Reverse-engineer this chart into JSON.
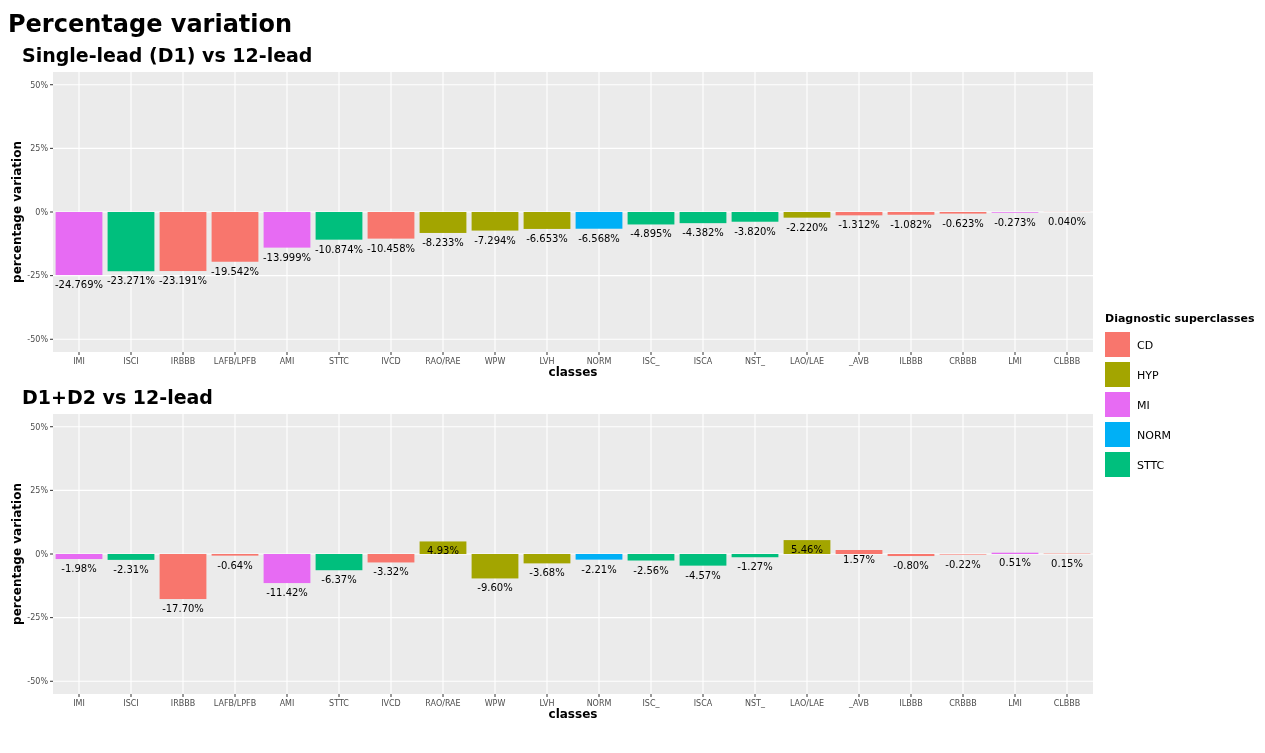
{
  "chart_data": [
    {
      "type": "bar",
      "title": "Percentage variation",
      "subtitle": "Single-lead (D1) vs 12-lead",
      "xlabel": "classes",
      "ylabel": "percentage variation",
      "legend_title": "Diagnostic superclasses",
      "legend": "right",
      "grid": true,
      "stacked": true,
      "categories": [
        "IMI",
        "ISCI",
        "IRBBB",
        "LAFB/LPFB",
        "AMI",
        "STTC",
        "IVCD",
        "RAO/RAE",
        "WPW",
        "LVH",
        "NORM",
        "ISC_",
        "ISCA",
        "NST_",
        "LAO/LAE",
        "_AVB",
        "ILBBB",
        "CRBBB",
        "LMI",
        "CLBBB"
      ],
      "ylim": [
        -55,
        55
      ],
      "yticks": [
        {
          "value": -50,
          "label": "-50%"
        },
        {
          "value": -25,
          "label": "-25%"
        },
        {
          "value": 0,
          "label": "0%"
        },
        {
          "value": 25,
          "label": "25%"
        },
        {
          "value": 50,
          "label": "50%"
        }
      ],
      "series": [
        {
          "name": "CD",
          "color": "#f8766d",
          "values": [
            null,
            null,
            -23.191,
            -19.542,
            null,
            null,
            -10.458,
            null,
            null,
            null,
            null,
            null,
            null,
            null,
            null,
            -1.312,
            -1.082,
            -0.623,
            null,
            0.04
          ],
          "value_labels": [
            null,
            null,
            "-23.191%",
            "-19.542%",
            null,
            null,
            "-10.458%",
            null,
            null,
            null,
            null,
            null,
            null,
            null,
            null,
            "-1.312%",
            "-1.082%",
            "-0.623%",
            null,
            "0.040%"
          ]
        },
        {
          "name": "HYP",
          "color": "#a3a500",
          "values": [
            null,
            null,
            null,
            null,
            null,
            null,
            null,
            -8.233,
            -7.294,
            -6.653,
            null,
            null,
            null,
            null,
            -2.22,
            null,
            null,
            null,
            null,
            null
          ],
          "value_labels": [
            null,
            null,
            null,
            null,
            null,
            null,
            null,
            "-8.233%",
            "-7.294%",
            "-6.653%",
            null,
            null,
            null,
            null,
            "-2.220%",
            null,
            null,
            null,
            null,
            null
          ]
        },
        {
          "name": "MI",
          "color": "#e76bf3",
          "values": [
            -24.769,
            null,
            null,
            null,
            -13.999,
            null,
            null,
            null,
            null,
            null,
            null,
            null,
            null,
            null,
            null,
            null,
            null,
            null,
            -0.273,
            null
          ],
          "value_labels": [
            "-24.769%",
            null,
            null,
            null,
            "-13.999%",
            null,
            null,
            null,
            null,
            null,
            null,
            null,
            null,
            null,
            null,
            null,
            null,
            null,
            "-0.273%",
            null
          ]
        },
        {
          "name": "NORM",
          "color": "#00b0f6",
          "values": [
            null,
            null,
            null,
            null,
            null,
            null,
            null,
            null,
            null,
            null,
            -6.568,
            null,
            null,
            null,
            null,
            null,
            null,
            null,
            null,
            null
          ],
          "value_labels": [
            null,
            null,
            null,
            null,
            null,
            null,
            null,
            null,
            null,
            null,
            "-6.568%",
            null,
            null,
            null,
            null,
            null,
            null,
            null,
            null,
            null
          ]
        },
        {
          "name": "STTC",
          "color": "#00bf7d",
          "values": [
            null,
            -23.271,
            null,
            null,
            null,
            -10.874,
            null,
            null,
            null,
            null,
            null,
            -4.895,
            -4.382,
            -3.82,
            null,
            null,
            null,
            null,
            null,
            null
          ],
          "value_labels": [
            null,
            "-23.271%",
            null,
            null,
            null,
            "-10.874%",
            null,
            null,
            null,
            null,
            null,
            "-4.895%",
            "-4.382%",
            "-3.820%",
            null,
            null,
            null,
            null,
            null,
            null
          ]
        }
      ]
    },
    {
      "type": "bar",
      "title": "D1+D2 vs 12-lead",
      "xlabel": "classes",
      "ylabel": "percentage variation",
      "grid": true,
      "stacked": true,
      "categories": [
        "IMI",
        "ISCI",
        "IRBBB",
        "LAFB/LPFB",
        "AMI",
        "STTC",
        "IVCD",
        "RAO/RAE",
        "WPW",
        "LVH",
        "NORM",
        "ISC_",
        "ISCA",
        "NST_",
        "LAO/LAE",
        "_AVB",
        "ILBBB",
        "CRBBB",
        "LMI",
        "CLBBB"
      ],
      "ylim": [
        -55,
        55
      ],
      "yticks": [
        {
          "value": -50,
          "label": "-50%"
        },
        {
          "value": -25,
          "label": "-25%"
        },
        {
          "value": 0,
          "label": "0%"
        },
        {
          "value": 25,
          "label": "25%"
        },
        {
          "value": 50,
          "label": "50%"
        }
      ],
      "series": [
        {
          "color": "#f8766d",
          "values": [
            null,
            null,
            -17.7,
            -0.64,
            null,
            null,
            -3.32,
            null,
            null,
            null,
            null,
            null,
            null,
            null,
            null,
            1.57,
            -0.8,
            -0.22,
            null,
            0.15
          ],
          "value_labels": [
            null,
            null,
            "-17.70%",
            "-0.64%",
            null,
            null,
            "-3.32%",
            null,
            null,
            null,
            null,
            null,
            null,
            null,
            null,
            "1.57%",
            "-0.80%",
            "-0.22%",
            null,
            "0.15%"
          ]
        },
        {
          "color": "#a3a500",
          "values": [
            null,
            null,
            null,
            null,
            null,
            null,
            null,
            4.93,
            -9.6,
            -3.68,
            null,
            null,
            null,
            null,
            5.46,
            null,
            null,
            null,
            null,
            null
          ],
          "value_labels": [
            null,
            null,
            null,
            null,
            null,
            null,
            null,
            "4.93%",
            "-9.60%",
            "-3.68%",
            null,
            null,
            null,
            null,
            "5.46%",
            null,
            null,
            null,
            null,
            null
          ]
        },
        {
          "color": "#e76bf3",
          "values": [
            -1.98,
            null,
            null,
            null,
            -11.42,
            null,
            null,
            null,
            null,
            null,
            null,
            null,
            null,
            null,
            null,
            null,
            null,
            null,
            0.51,
            null
          ],
          "value_labels": [
            "-1.98%",
            null,
            null,
            null,
            "-11.42%",
            null,
            null,
            null,
            null,
            null,
            null,
            null,
            null,
            null,
            null,
            null,
            null,
            null,
            "0.51%",
            null
          ]
        },
        {
          "color": "#00b0f6",
          "values": [
            null,
            null,
            null,
            null,
            null,
            null,
            null,
            null,
            null,
            null,
            -2.21,
            null,
            null,
            null,
            null,
            null,
            null,
            null,
            null,
            null
          ],
          "value_labels": [
            null,
            null,
            null,
            null,
            null,
            null,
            null,
            null,
            null,
            null,
            "-2.21%",
            null,
            null,
            null,
            null,
            null,
            null,
            null,
            null,
            null
          ]
        },
        {
          "color": "#00bf7d",
          "values": [
            null,
            -2.31,
            null,
            null,
            null,
            -6.37,
            null,
            null,
            null,
            null,
            null,
            -2.56,
            -4.57,
            -1.27,
            null,
            null,
            null,
            null,
            null,
            null
          ],
          "value_labels": [
            null,
            "-2.31%",
            null,
            null,
            null,
            "-6.37%",
            null,
            null,
            null,
            null,
            null,
            "-2.56%",
            "-4.57%",
            "-1.27%",
            null,
            null,
            null,
            null,
            null,
            null
          ]
        }
      ]
    }
  ]
}
